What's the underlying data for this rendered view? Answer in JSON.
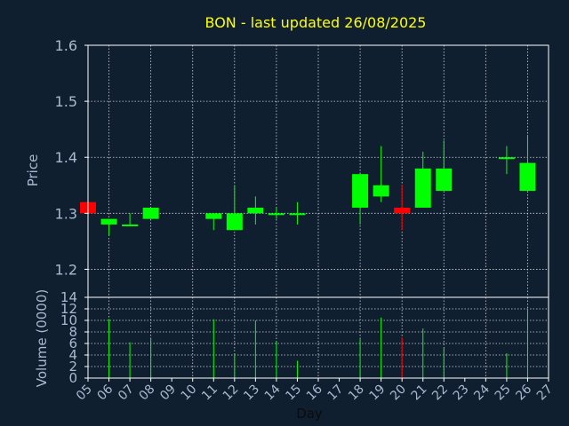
{
  "chart_data": [
    {
      "type": "candlestick",
      "title": "BON - last updated 26/08/2025",
      "ylabel": "Price",
      "ylim": [
        1.15,
        1.6
      ],
      "yticks": [
        "1.2",
        "1.3",
        "1.4",
        "1.5",
        "1.6"
      ],
      "grid": true,
      "up_color": "#00ff00",
      "down_color": "#ff0000",
      "candles": [
        {
          "x": "05",
          "open": 1.32,
          "high": 1.32,
          "low": 1.3,
          "close": 1.3
        },
        {
          "x": "06",
          "open": 1.28,
          "high": 1.29,
          "low": 1.26,
          "close": 1.29
        },
        {
          "x": "07",
          "open": 1.28,
          "high": 1.3,
          "low": 1.28,
          "close": 1.28
        },
        {
          "x": "08",
          "open": 1.29,
          "high": 1.31,
          "low": 1.29,
          "close": 1.31
        },
        {
          "x": "11",
          "open": 1.29,
          "high": 1.3,
          "low": 1.27,
          "close": 1.3
        },
        {
          "x": "12",
          "open": 1.27,
          "high": 1.35,
          "low": 1.27,
          "close": 1.3
        },
        {
          "x": "13",
          "open": 1.3,
          "high": 1.33,
          "low": 1.28,
          "close": 1.31
        },
        {
          "x": "14",
          "open": 1.3,
          "high": 1.31,
          "low": 1.29,
          "close": 1.3
        },
        {
          "x": "15",
          "open": 1.3,
          "high": 1.32,
          "low": 1.28,
          "close": 1.3
        },
        {
          "x": "18",
          "open": 1.31,
          "high": 1.37,
          "low": 1.28,
          "close": 1.37
        },
        {
          "x": "19",
          "open": 1.33,
          "high": 1.42,
          "low": 1.32,
          "close": 1.35
        },
        {
          "x": "20",
          "open": 1.31,
          "high": 1.35,
          "low": 1.27,
          "close": 1.3
        },
        {
          "x": "21",
          "open": 1.31,
          "high": 1.41,
          "low": 1.31,
          "close": 1.38
        },
        {
          "x": "22",
          "open": 1.34,
          "high": 1.43,
          "low": 1.34,
          "close": 1.38
        },
        {
          "x": "25",
          "open": 1.4,
          "high": 1.42,
          "low": 1.37,
          "close": 1.4
        },
        {
          "x": "26",
          "open": 1.34,
          "high": 1.44,
          "low": 1.34,
          "close": 1.39
        }
      ]
    },
    {
      "type": "bar",
      "ylabel": "Volume (0000)",
      "xlabel": "Day",
      "ylim": [
        0,
        14
      ],
      "yticks": [
        "0",
        "2",
        "4",
        "6",
        "8",
        "10",
        "12",
        "14"
      ],
      "categories": [
        "05",
        "06",
        "07",
        "08",
        "09",
        "10",
        "11",
        "12",
        "13",
        "14",
        "15",
        "16",
        "17",
        "18",
        "19",
        "20",
        "21",
        "22",
        "23",
        "24",
        "25",
        "26",
        "27"
      ],
      "bars": [
        {
          "x": "05",
          "value": 0.3,
          "color": "#ff0000"
        },
        {
          "x": "06",
          "value": 10.2,
          "color": "#00ff00"
        },
        {
          "x": "07",
          "value": 6.2,
          "color": "#00ff00"
        },
        {
          "x": "08",
          "value": 7.0,
          "color": "#00ff00"
        },
        {
          "x": "11",
          "value": 10.2,
          "color": "#00ff00"
        },
        {
          "x": "12",
          "value": 4.3,
          "color": "#00ff00"
        },
        {
          "x": "13",
          "value": 10.0,
          "color": "#00ff00"
        },
        {
          "x": "14",
          "value": 6.3,
          "color": "#00ff00"
        },
        {
          "x": "15",
          "value": 3.0,
          "color": "#00ff00"
        },
        {
          "x": "18",
          "value": 6.8,
          "color": "#00ff00"
        },
        {
          "x": "19",
          "value": 10.5,
          "color": "#00ff00"
        },
        {
          "x": "20",
          "value": 7.0,
          "color": "#ff0000"
        },
        {
          "x": "21",
          "value": 8.6,
          "color": "#00ff00"
        },
        {
          "x": "22",
          "value": 5.2,
          "color": "#00ff00"
        },
        {
          "x": "25",
          "value": 4.3,
          "color": "#00ff00"
        },
        {
          "x": "26",
          "value": 12.0,
          "color": "#00ff00"
        }
      ]
    }
  ]
}
